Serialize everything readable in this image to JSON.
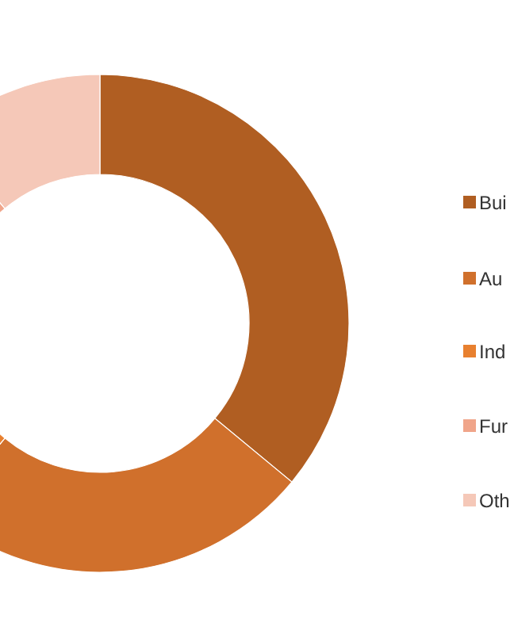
{
  "chart_data": {
    "type": "donut",
    "categories": [
      "Bui",
      "Au",
      "Ind",
      "Fur",
      "Oth"
    ],
    "values": [
      36,
      25,
      19,
      9,
      11
    ],
    "colors": [
      "#b05e22",
      "#d0702c",
      "#e8802f",
      "#f0a58a",
      "#f5c8b8"
    ],
    "legend": "right"
  }
}
